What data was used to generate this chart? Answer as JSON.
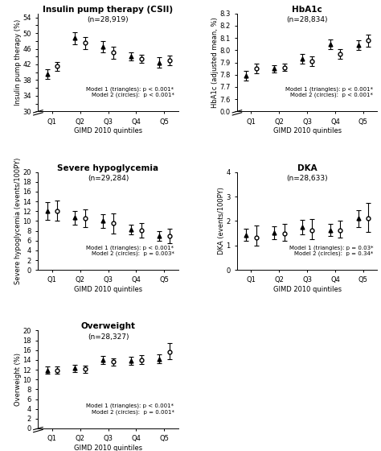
{
  "panels": [
    {
      "title": "Insulin pump therapy (CSII)",
      "subtitle": "(n=28,919)",
      "ylabel": "Insulin pump therapy (%)",
      "xlabel": "GIMD 2010 quintiles",
      "ylim": [
        30,
        55
      ],
      "yticks": [
        30,
        32,
        34,
        36,
        38,
        40,
        42,
        44,
        46,
        48,
        50,
        52,
        54
      ],
      "ytick_labels": [
        "30",
        "",
        "34",
        "",
        "38",
        "",
        "42",
        "",
        "46",
        "",
        "50",
        "",
        "54"
      ],
      "model1": {
        "values": [
          39.5,
          48.7,
          46.5,
          44.0,
          42.5
        ],
        "ci_low": [
          1.2,
          1.5,
          1.5,
          1.0,
          1.3
        ],
        "ci_high": [
          1.2,
          1.5,
          1.5,
          1.0,
          1.3
        ]
      },
      "model2": {
        "values": [
          41.5,
          47.5,
          45.0,
          43.5,
          43.0
        ],
        "ci_low": [
          1.2,
          1.5,
          1.5,
          1.0,
          1.3
        ],
        "ci_high": [
          1.2,
          1.5,
          1.5,
          1.0,
          1.3
        ]
      },
      "annotation": "Model 1 (triangles): p < 0.001*\nModel 2 (circles):  p < 0.001*",
      "has_break": true
    },
    {
      "title": "HbA1c",
      "subtitle": "(n=28,834)",
      "ylabel": "HbA1c (adjusted mean, %)",
      "xlabel": "GIMD 2010 quintiles",
      "ylim": [
        7.5,
        8.3
      ],
      "yticks": [
        7.5,
        7.6,
        7.7,
        7.8,
        7.9,
        8.0,
        8.1,
        8.2,
        8.3
      ],
      "ytick_labels": [
        "0.0",
        "7.6",
        "7.7",
        "7.8",
        "7.9",
        "8.0",
        "8.1",
        "8.2",
        "8.3"
      ],
      "model1": {
        "values": [
          7.79,
          7.85,
          7.93,
          8.05,
          8.04
        ],
        "ci_low": [
          0.04,
          0.03,
          0.04,
          0.04,
          0.04
        ],
        "ci_high": [
          0.04,
          0.03,
          0.04,
          0.04,
          0.04
        ]
      },
      "model2": {
        "values": [
          7.85,
          7.86,
          7.91,
          7.97,
          8.08
        ],
        "ci_low": [
          0.04,
          0.03,
          0.04,
          0.04,
          0.05
        ],
        "ci_high": [
          0.04,
          0.03,
          0.04,
          0.04,
          0.05
        ]
      },
      "annotation": "Model 1 (triangles): p < 0.001*\nModel 2 (circles):  p < 0.001*",
      "has_break": true
    },
    {
      "title": "Severe hypoglycemia",
      "subtitle": "(n=29,284)",
      "ylabel": "Severe hypoglycemia (events/100PY)",
      "xlabel": "GIMD 2010 quintiles",
      "ylim": [
        0,
        20
      ],
      "yticks": [
        0,
        2,
        4,
        6,
        8,
        10,
        12,
        14,
        16,
        18,
        20
      ],
      "ytick_labels": [
        "0",
        "2",
        "4",
        "6",
        "8",
        "10",
        "12",
        "14",
        "16",
        "18",
        "20"
      ],
      "model1": {
        "values": [
          12.1,
          10.7,
          10.0,
          8.3,
          7.0
        ],
        "ci_low": [
          1.8,
          1.4,
          1.4,
          1.0,
          1.0
        ],
        "ci_high": [
          1.8,
          1.4,
          1.4,
          1.0,
          1.0
        ]
      },
      "model2": {
        "values": [
          12.1,
          10.5,
          9.5,
          8.1,
          6.9
        ],
        "ci_low": [
          2.0,
          1.8,
          2.0,
          1.5,
          1.5
        ],
        "ci_high": [
          2.0,
          1.8,
          2.0,
          1.5,
          1.5
        ]
      },
      "annotation": "Model 1 (triangles): p < 0.001*\nModel 2 (circles):  p = 0.003*",
      "has_break": false
    },
    {
      "title": "DKA",
      "subtitle": "(n=28,633)",
      "ylabel": "DKA (events/100PY)",
      "xlabel": "GIMD 2010 quintiles",
      "ylim": [
        0,
        4
      ],
      "yticks": [
        0,
        1,
        2,
        3,
        4
      ],
      "ytick_labels": [
        "0",
        "1",
        "2",
        "3",
        "4"
      ],
      "model1": {
        "values": [
          1.43,
          1.52,
          1.75,
          1.63,
          2.1
        ],
        "ci_low": [
          0.25,
          0.25,
          0.3,
          0.25,
          0.35
        ],
        "ci_high": [
          0.25,
          0.25,
          0.3,
          0.25,
          0.35
        ]
      },
      "model2": {
        "values": [
          1.33,
          1.48,
          1.62,
          1.62,
          2.1
        ],
        "ci_low": [
          0.35,
          0.3,
          0.35,
          0.3,
          0.55
        ],
        "ci_high": [
          0.5,
          0.4,
          0.45,
          0.4,
          0.65
        ]
      },
      "annotation": "Model 1 (triangles): p = 0.03*\nModel 2 (circles):  p = 0.34*",
      "has_break": false
    },
    {
      "title": "Overweight",
      "subtitle": "(n=28,327)",
      "ylabel": "Overweight (%)",
      "xlabel": "GIMD 2010 quintiles",
      "ylim": [
        0,
        20
      ],
      "yticks": [
        0,
        2,
        4,
        6,
        8,
        10,
        12,
        14,
        16,
        18,
        20
      ],
      "ytick_labels": [
        "0",
        "2",
        "4",
        "6",
        "8",
        "10",
        "12",
        "14",
        "16",
        "18",
        "20"
      ],
      "model1": {
        "values": [
          11.9,
          12.3,
          14.0,
          13.8,
          14.2
        ],
        "ci_low": [
          0.7,
          0.7,
          0.8,
          0.8,
          0.9
        ],
        "ci_high": [
          0.7,
          0.7,
          0.8,
          0.8,
          0.9
        ]
      },
      "model2": {
        "values": [
          11.9,
          12.1,
          13.6,
          14.0,
          15.7
        ],
        "ci_low": [
          0.7,
          0.7,
          0.8,
          0.9,
          1.5
        ],
        "ci_high": [
          0.7,
          0.7,
          0.8,
          0.9,
          1.8
        ]
      },
      "annotation": "Model 1 (triangles): p < 0.001*\nModel 2 (circles):  p = 0.001*",
      "has_break": true
    }
  ],
  "quintiles": [
    "Q1",
    "Q2",
    "Q3",
    "Q4",
    "Q5"
  ],
  "annotation_fontsize": 5.0,
  "title_fontsize": 7.5,
  "subtitle_fontsize": 6.5,
  "label_fontsize": 6.0,
  "tick_fontsize": 6.0
}
